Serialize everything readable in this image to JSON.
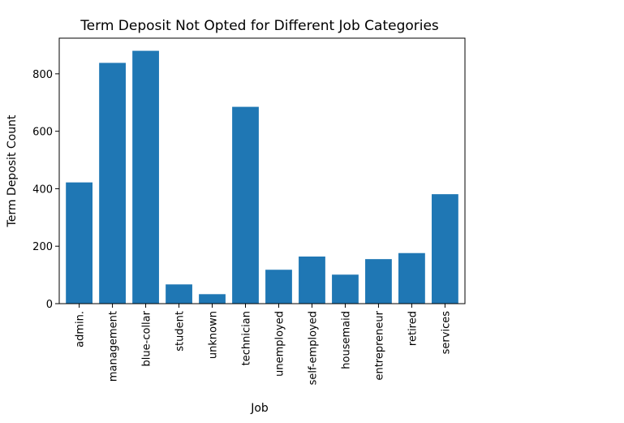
{
  "chart_data": {
    "type": "bar",
    "title": "Term Deposit Not Opted for Different Job Categories",
    "xlabel": "Job",
    "ylabel": "Term Deposit Count",
    "categories": [
      "admin.",
      "management",
      "blue-collar",
      "student",
      "unknown",
      "technician",
      "unemployed",
      "self-employed",
      "housemaid",
      "entrepreneur",
      "retired",
      "services"
    ],
    "values": [
      422,
      838,
      880,
      67,
      33,
      685,
      118,
      164,
      101,
      155,
      176,
      381
    ],
    "ylim": [
      0,
      924
    ],
    "yticks": [
      0,
      200,
      400,
      600,
      800
    ],
    "bar_color": "#1f77b4",
    "grid": false,
    "legend": "none"
  }
}
